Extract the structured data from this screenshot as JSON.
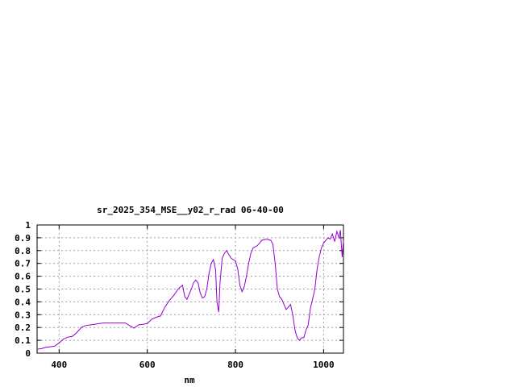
{
  "chart_data": {
    "type": "line",
    "title": "sr_2025_354_MSE__y02_r_rad 06-40-00",
    "xlabel": "nm",
    "ylabel": "",
    "xlim": [
      350,
      1045
    ],
    "ylim": [
      0,
      1
    ],
    "x_ticks": [
      400,
      600,
      800,
      1000
    ],
    "y_ticks": [
      0,
      0.1,
      0.2,
      0.3,
      0.4,
      0.5,
      0.6,
      0.7,
      0.8,
      0.9,
      1
    ],
    "y_tick_labels": [
      "0",
      "0.1",
      "0.2",
      "0.3",
      "0.4",
      "0.5",
      "0.6",
      "0.7",
      "0.8",
      "0.9",
      "1"
    ],
    "grid": true,
    "series": [
      {
        "color": "#9400d3",
        "points": [
          [
            350,
            0.03
          ],
          [
            360,
            0.035
          ],
          [
            370,
            0.045
          ],
          [
            380,
            0.05
          ],
          [
            390,
            0.055
          ],
          [
            400,
            0.08
          ],
          [
            410,
            0.11
          ],
          [
            420,
            0.125
          ],
          [
            430,
            0.13
          ],
          [
            440,
            0.16
          ],
          [
            450,
            0.2
          ],
          [
            460,
            0.215
          ],
          [
            470,
            0.22
          ],
          [
            480,
            0.225
          ],
          [
            490,
            0.23
          ],
          [
            500,
            0.235
          ],
          [
            510,
            0.235
          ],
          [
            520,
            0.235
          ],
          [
            530,
            0.235
          ],
          [
            540,
            0.235
          ],
          [
            550,
            0.235
          ],
          [
            560,
            0.215
          ],
          [
            570,
            0.195
          ],
          [
            580,
            0.22
          ],
          [
            590,
            0.225
          ],
          [
            600,
            0.23
          ],
          [
            610,
            0.265
          ],
          [
            620,
            0.28
          ],
          [
            630,
            0.29
          ],
          [
            640,
            0.36
          ],
          [
            650,
            0.41
          ],
          [
            660,
            0.45
          ],
          [
            670,
            0.5
          ],
          [
            680,
            0.53
          ],
          [
            685,
            0.44
          ],
          [
            690,
            0.42
          ],
          [
            700,
            0.5
          ],
          [
            705,
            0.55
          ],
          [
            710,
            0.57
          ],
          [
            715,
            0.55
          ],
          [
            720,
            0.47
          ],
          [
            725,
            0.43
          ],
          [
            730,
            0.44
          ],
          [
            735,
            0.5
          ],
          [
            740,
            0.62
          ],
          [
            745,
            0.7
          ],
          [
            750,
            0.73
          ],
          [
            755,
            0.65
          ],
          [
            758,
            0.4
          ],
          [
            762,
            0.32
          ],
          [
            765,
            0.55
          ],
          [
            770,
            0.74
          ],
          [
            775,
            0.78
          ],
          [
            780,
            0.8
          ],
          [
            785,
            0.77
          ],
          [
            790,
            0.74
          ],
          [
            795,
            0.73
          ],
          [
            800,
            0.72
          ],
          [
            805,
            0.66
          ],
          [
            810,
            0.53
          ],
          [
            815,
            0.48
          ],
          [
            820,
            0.52
          ],
          [
            825,
            0.6
          ],
          [
            830,
            0.7
          ],
          [
            835,
            0.78
          ],
          [
            840,
            0.82
          ],
          [
            845,
            0.83
          ],
          [
            850,
            0.84
          ],
          [
            855,
            0.86
          ],
          [
            860,
            0.88
          ],
          [
            870,
            0.89
          ],
          [
            880,
            0.88
          ],
          [
            885,
            0.85
          ],
          [
            890,
            0.7
          ],
          [
            895,
            0.5
          ],
          [
            900,
            0.44
          ],
          [
            905,
            0.42
          ],
          [
            910,
            0.38
          ],
          [
            915,
            0.34
          ],
          [
            920,
            0.36
          ],
          [
            925,
            0.38
          ],
          [
            930,
            0.3
          ],
          [
            935,
            0.18
          ],
          [
            940,
            0.12
          ],
          [
            945,
            0.1
          ],
          [
            950,
            0.12
          ],
          [
            955,
            0.12
          ],
          [
            960,
            0.18
          ],
          [
            965,
            0.22
          ],
          [
            970,
            0.35
          ],
          [
            975,
            0.42
          ],
          [
            980,
            0.5
          ],
          [
            985,
            0.65
          ],
          [
            990,
            0.75
          ],
          [
            995,
            0.82
          ],
          [
            1000,
            0.86
          ],
          [
            1005,
            0.88
          ],
          [
            1010,
            0.9
          ],
          [
            1015,
            0.89
          ],
          [
            1020,
            0.93
          ],
          [
            1025,
            0.87
          ],
          [
            1030,
            0.95
          ],
          [
            1035,
            0.9
          ],
          [
            1038,
            0.96
          ],
          [
            1040,
            0.85
          ],
          [
            1042,
            0.75
          ],
          [
            1045,
            0.88
          ]
        ]
      }
    ]
  }
}
